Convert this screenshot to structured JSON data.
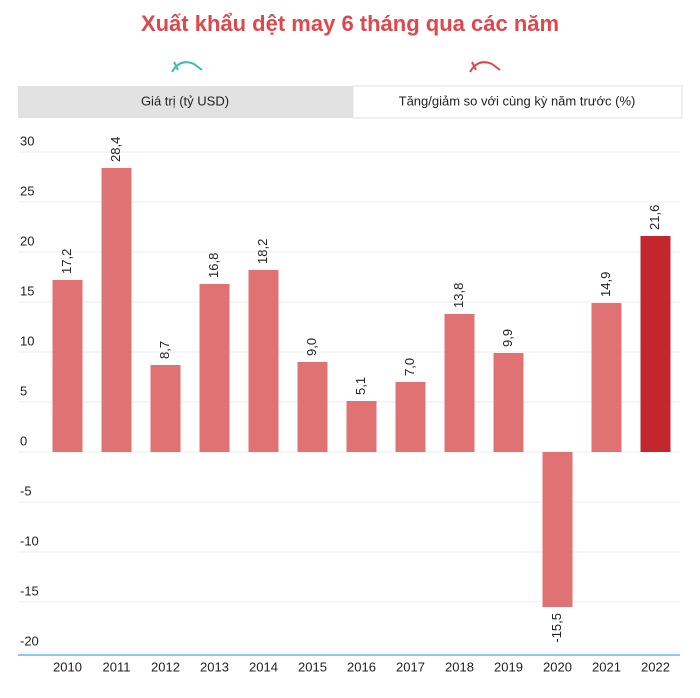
{
  "chart_data": {
    "type": "bar",
    "title": "Xuất khẩu dệt may 6 tháng qua các năm",
    "categories": [
      "2010",
      "2011",
      "2012",
      "2013",
      "2014",
      "2015",
      "2016",
      "2017",
      "2018",
      "2019",
      "2020",
      "2021",
      "2022"
    ],
    "values": [
      17.2,
      28.4,
      8.7,
      16.8,
      18.2,
      9.0,
      5.1,
      7.0,
      13.8,
      9.9,
      -15.5,
      14.9,
      21.6
    ],
    "value_labels": [
      "17,2",
      "28,4",
      "8,7",
      "16,8",
      "18,2",
      "9,0",
      "5,1",
      "7,0",
      "13,8",
      "9,9",
      "-15,5",
      "14,9",
      "21,6"
    ],
    "colors": [
      "#e07274",
      "#e07274",
      "#e07274",
      "#e07274",
      "#e07274",
      "#e07274",
      "#e07274",
      "#e07274",
      "#e07274",
      "#e07274",
      "#e07274",
      "#e07274",
      "#c1272d"
    ],
    "ylim": [
      -20,
      30
    ],
    "yticks": [
      -20,
      -15,
      -10,
      -5,
      0,
      5,
      10,
      15,
      20,
      25,
      30
    ],
    "grid": true
  },
  "tabs": [
    "Giá trị (tỷ USD)",
    "Tăng/giảm so với cùng kỳ năm trước (%)"
  ]
}
